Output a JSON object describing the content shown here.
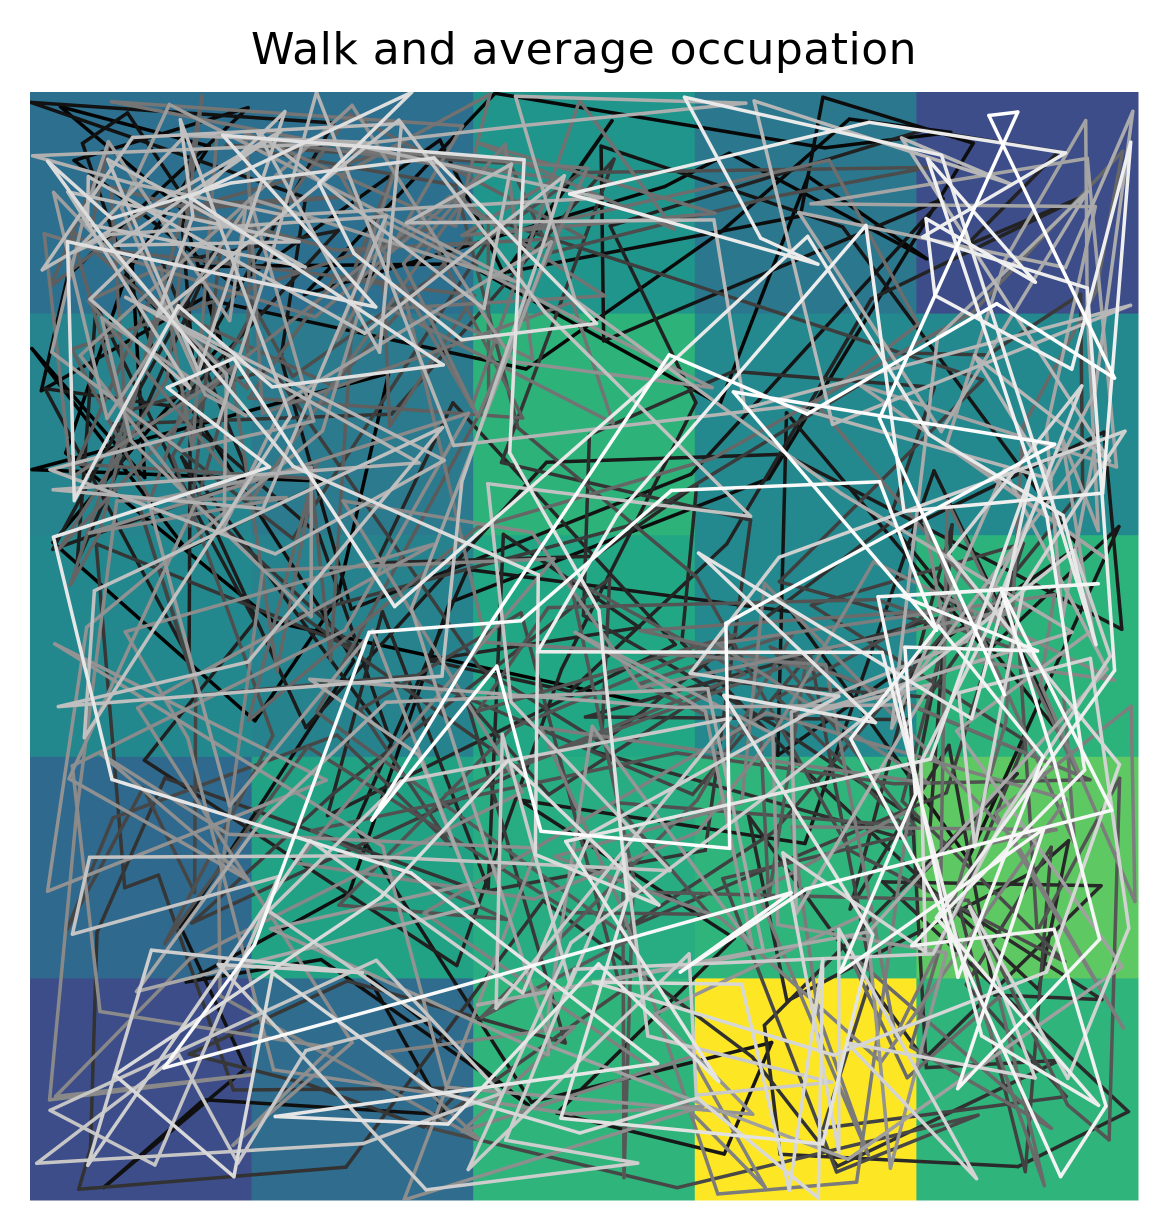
{
  "chart_data": {
    "type": "heatmap",
    "title": "Walk and average occupation",
    "xlabel": "",
    "ylabel": "",
    "axes_visible": false,
    "grid": false,
    "colormap": "viridis",
    "occupation": {
      "grid_rows": 5,
      "grid_cols": 5,
      "cell_colors": [
        [
          "#2c6f8e",
          "#2c6f8e",
          "#20958b",
          "#2a778e",
          "#3d4d8a"
        ],
        [
          "#26848e",
          "#2b7a8e",
          "#2db37a",
          "#23898e",
          "#23898e"
        ],
        [
          "#23888e",
          "#26838e",
          "#22a784",
          "#23898e",
          "#2cb37c"
        ],
        [
          "#30698e",
          "#22a284",
          "#27ad81",
          "#2fb47c",
          "#5ec962"
        ],
        [
          "#3d4d8a",
          "#2f6c8e",
          "#2fb47c",
          "#fde725",
          "#2fb47c"
        ]
      ]
    },
    "walk": {
      "line_color_gradient": [
        "#000000",
        "#ffffff"
      ],
      "segments_drawn": 900,
      "line_width": 3.5
    }
  }
}
